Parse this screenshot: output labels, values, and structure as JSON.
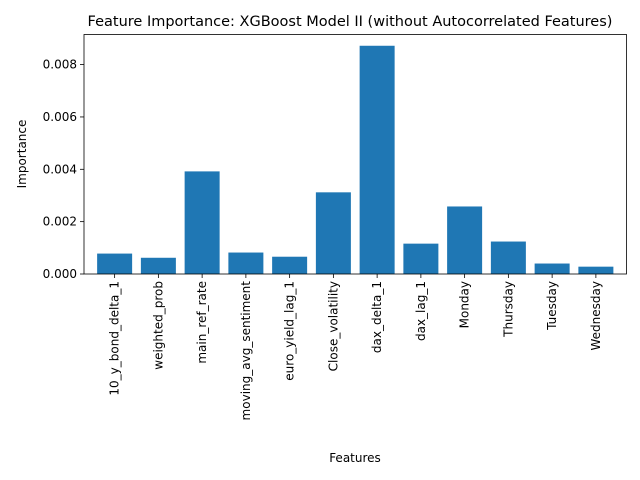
{
  "chart_data": {
    "type": "bar",
    "title": "Feature Importance: XGBoost Model II (without Autocorrelated Features)",
    "xlabel": "Features",
    "ylabel": "Importance",
    "categories": [
      "10_y_bond_delta_1",
      "weighted_prob",
      "main_ref_rate",
      "moving_avg_sentiment",
      "euro_yield_lag_1",
      "Close_volatility",
      "dax_delta_1",
      "dax_lag_1",
      "Monday",
      "Thursday",
      "Tuesday",
      "Wednesday"
    ],
    "values": [
      0.00078,
      0.00062,
      0.00392,
      0.00082,
      0.00066,
      0.00312,
      0.00872,
      0.00116,
      0.00258,
      0.00124,
      0.0004,
      0.00028
    ],
    "ylim": [
      0,
      0.00915
    ],
    "yticks": [
      0.0,
      0.002,
      0.004,
      0.006,
      0.008
    ],
    "ytick_labels": [
      "0.000",
      "0.002",
      "0.004",
      "0.006",
      "0.008"
    ],
    "bar_color": "#1f77b4",
    "grid": false,
    "legend": "none"
  }
}
